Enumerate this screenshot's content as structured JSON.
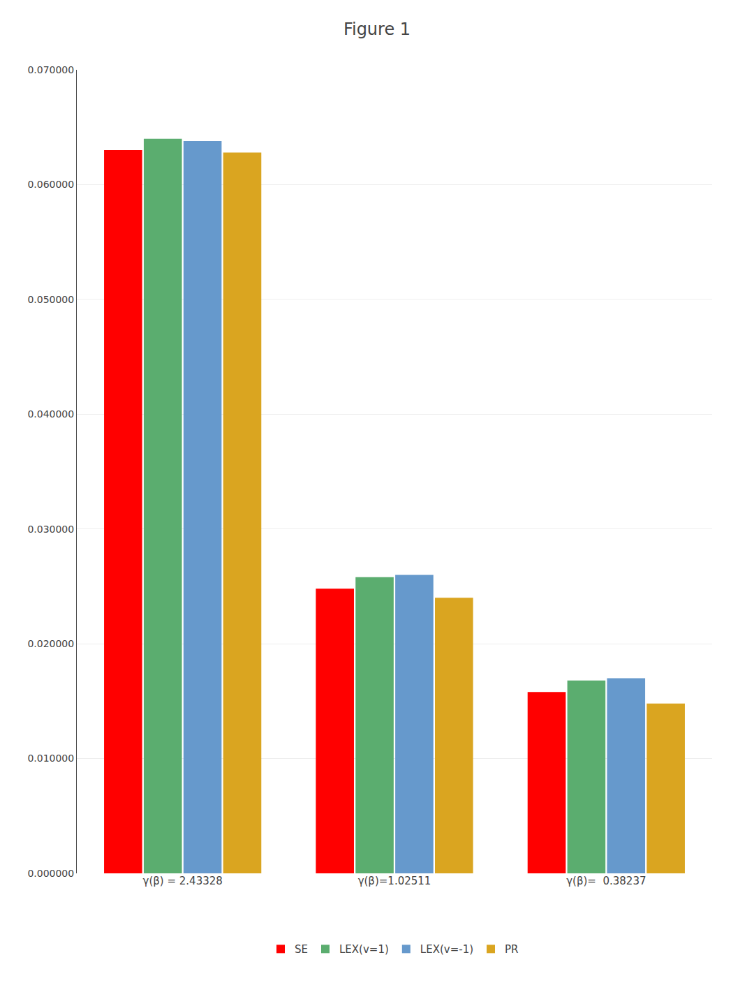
{
  "chart_data": {
    "type": "bar",
    "title": "Figure 1",
    "categories": [
      "γ(β) = 2.43328",
      "γ(β)=1.02511",
      "γ(β)=  0.38237"
    ],
    "series": [
      {
        "name": "SE",
        "color": "#FF0000",
        "values": [
          0.063,
          0.0248,
          0.0158
        ]
      },
      {
        "name": "LEX(v=1)",
        "color": "#5BAD6F",
        "values": [
          0.064,
          0.0258,
          0.0168
        ]
      },
      {
        "name": "LEX(v=-1)",
        "color": "#6699CC",
        "values": [
          0.0638,
          0.026,
          0.017
        ]
      },
      {
        "name": "PR",
        "color": "#DAA520",
        "values": [
          0.0628,
          0.024,
          0.0148
        ]
      }
    ],
    "ylim": [
      0.0,
      0.07
    ],
    "yticks": [
      {
        "value": 0.0,
        "label": "0.000000"
      },
      {
        "value": 0.01,
        "label": "0.010000"
      },
      {
        "value": 0.02,
        "label": "0.020000"
      },
      {
        "value": 0.03,
        "label": "0.030000"
      },
      {
        "value": 0.04,
        "label": "0.040000"
      },
      {
        "value": 0.05,
        "label": "0.050000"
      },
      {
        "value": 0.06,
        "label": "0.060000"
      },
      {
        "value": 0.07,
        "label": "0.070000"
      }
    ],
    "grid": true,
    "legend": "bottom"
  }
}
